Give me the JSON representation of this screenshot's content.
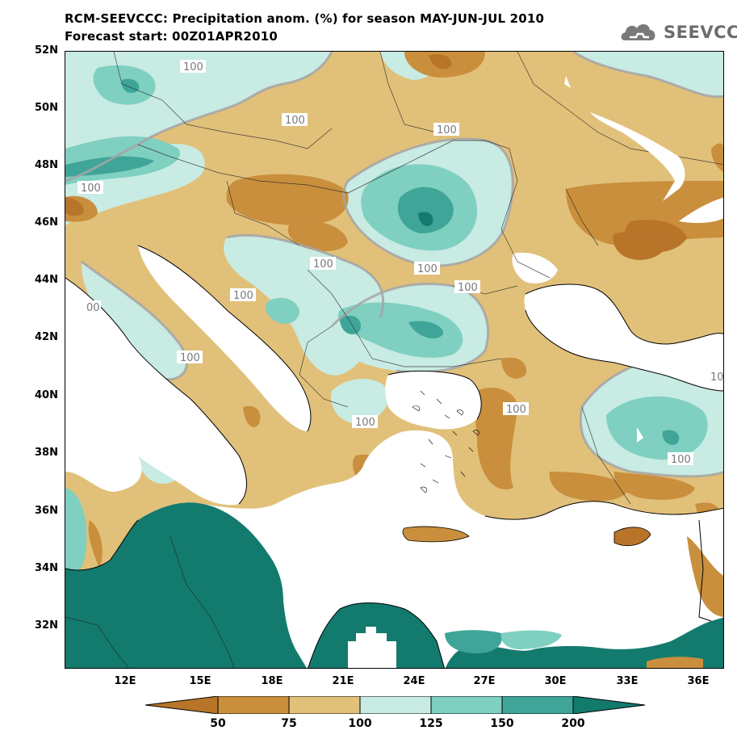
{
  "title_line1": "RCM-SEEVCCC: Precipitation anom. (%) for season MAY-JUN-JUL 2010",
  "title_line2": "Forecast start: 00Z01APR2010",
  "logo_text": "SEEVCCC",
  "lat_labels": [
    "52N",
    "50N",
    "48N",
    "46N",
    "44N",
    "42N",
    "40N",
    "38N",
    "36N",
    "34N",
    "32N"
  ],
  "lon_labels": [
    "12E",
    "15E",
    "18E",
    "21E",
    "24E",
    "27E",
    "30E",
    "33E",
    "36E"
  ],
  "contour_labels": [
    "100",
    "100",
    "100",
    "100",
    "100",
    "100",
    "100",
    "100",
    "100",
    "100",
    "100",
    "00",
    "10"
  ],
  "colorbar": {
    "ticks": [
      "50",
      "75",
      "100",
      "125",
      "150",
      "200"
    ],
    "colors": [
      "#b8752a",
      "#c98f3d",
      "#e1c07a",
      "#c8ebe3",
      "#7fd0c0",
      "#3fa598",
      "#137a6e"
    ]
  }
}
